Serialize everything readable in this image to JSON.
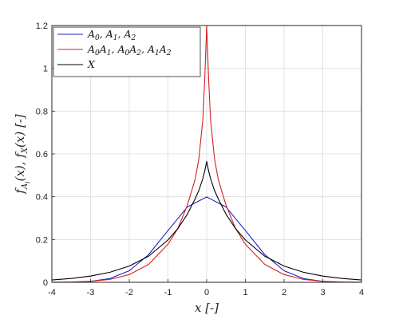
{
  "chart_data": {
    "type": "line",
    "title": "",
    "xlabel": "x [-]",
    "ylabel": "f_{A_i}(x), f_X(x) [-]",
    "xlim": [
      -4,
      4
    ],
    "ylim": [
      0,
      1.2
    ],
    "xticks": [
      -4,
      -3,
      -2,
      -1,
      0,
      1,
      2,
      3,
      4
    ],
    "yticks": [
      0,
      0.2,
      0.4,
      0.6,
      0.8,
      1,
      1.2
    ],
    "x_tick_labels": [
      "-4",
      "-3",
      "-2",
      "-1",
      "0",
      "1",
      "2",
      "3",
      "4"
    ],
    "y_tick_labels": [
      "0",
      "0.2",
      "0.4",
      "0.6",
      "0.8",
      "1",
      "1.2"
    ],
    "grid": true,
    "legend_position": "top-left",
    "series": [
      {
        "name": "A0,  A1,  A2",
        "color": "#1f1fc0",
        "x": [
          -4,
          -3.5,
          -3,
          -2.5,
          -2,
          -1.5,
          -1,
          -0.5,
          0,
          0.5,
          1,
          1.5,
          2,
          2.5,
          3,
          3.5,
          4
        ],
        "y": [
          0.0001,
          0.0009,
          0.0044,
          0.0175,
          0.054,
          0.1295,
          0.242,
          0.352,
          0.399,
          0.352,
          0.242,
          0.1295,
          0.054,
          0.0175,
          0.0044,
          0.0009,
          0.0001
        ]
      },
      {
        "name": "A0A1,  A0A2,  A1A2",
        "color": "#d62020",
        "x": [
          -4,
          -3.5,
          -3,
          -2.5,
          -2,
          -1.5,
          -1,
          -0.75,
          -0.5,
          -0.3,
          -0.2,
          -0.1,
          -0.05,
          0,
          0.05,
          0.1,
          0.2,
          0.3,
          0.5,
          0.75,
          1,
          1.5,
          2,
          2.5,
          3,
          3.5,
          4
        ],
        "y": [
          0.0005,
          0.0015,
          0.0047,
          0.0135,
          0.036,
          0.084,
          0.178,
          0.25,
          0.36,
          0.48,
          0.58,
          0.76,
          0.95,
          1.2,
          0.95,
          0.76,
          0.58,
          0.48,
          0.36,
          0.25,
          0.178,
          0.084,
          0.036,
          0.0135,
          0.0047,
          0.0015,
          0.0005
        ]
      },
      {
        "name": "X",
        "color": "#000000",
        "x": [
          -4,
          -3.5,
          -3,
          -2.5,
          -2,
          -1.5,
          -1,
          -0.75,
          -0.5,
          -0.3,
          -0.2,
          -0.1,
          -0.05,
          0,
          0.05,
          0.1,
          0.2,
          0.3,
          0.5,
          0.75,
          1,
          1.5,
          2,
          2.5,
          3,
          3.5,
          4
        ],
        "y": [
          0.011,
          0.018,
          0.029,
          0.047,
          0.076,
          0.122,
          0.198,
          0.25,
          0.318,
          0.39,
          0.43,
          0.485,
          0.52,
          0.565,
          0.52,
          0.485,
          0.43,
          0.39,
          0.318,
          0.25,
          0.198,
          0.122,
          0.076,
          0.047,
          0.029,
          0.018,
          0.011
        ]
      }
    ]
  }
}
